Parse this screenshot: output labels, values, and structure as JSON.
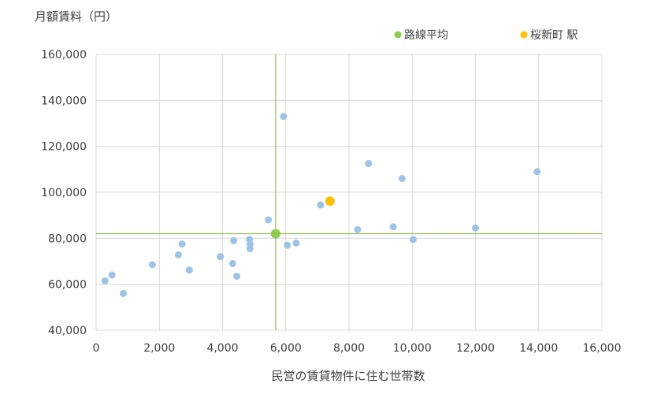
{
  "chart_data": {
    "type": "scatter",
    "title": "",
    "ylabel": "月額賃料（円）",
    "xlabel": "民営の賃貸物件に住む世帯数",
    "xlim": [
      0,
      16000
    ],
    "ylim": [
      40000,
      160000
    ],
    "x_ticks": [
      0,
      2000,
      4000,
      6000,
      8000,
      10000,
      12000,
      14000,
      16000
    ],
    "y_ticks": [
      40000,
      60000,
      80000,
      100000,
      120000,
      140000,
      160000
    ],
    "x_tick_labels": [
      "0",
      "2,000",
      "4,000",
      "6,000",
      "8,000",
      "10,000",
      "12,000",
      "14,000",
      "16,000"
    ],
    "y_tick_labels": [
      "40,000",
      "60,000",
      "80,000",
      "100,000",
      "120,000",
      "140,000",
      "160,000"
    ],
    "grid": true,
    "legend_position": "top-right",
    "points": [
      {
        "x": 280,
        "y": 61500
      },
      {
        "x": 500,
        "y": 64000
      },
      {
        "x": 860,
        "y": 56000
      },
      {
        "x": 1780,
        "y": 68500
      },
      {
        "x": 2600,
        "y": 72800
      },
      {
        "x": 2720,
        "y": 77500
      },
      {
        "x": 2950,
        "y": 66200
      },
      {
        "x": 3930,
        "y": 72000
      },
      {
        "x": 4320,
        "y": 69000
      },
      {
        "x": 4350,
        "y": 79000
      },
      {
        "x": 4450,
        "y": 63500
      },
      {
        "x": 4850,
        "y": 79500
      },
      {
        "x": 4870,
        "y": 77500
      },
      {
        "x": 4870,
        "y": 75500
      },
      {
        "x": 5450,
        "y": 88000
      },
      {
        "x": 5930,
        "y": 133000
      },
      {
        "x": 6050,
        "y": 77000
      },
      {
        "x": 6330,
        "y": 78000
      },
      {
        "x": 7100,
        "y": 94500
      },
      {
        "x": 8270,
        "y": 83800
      },
      {
        "x": 8620,
        "y": 112500
      },
      {
        "x": 9400,
        "y": 85000
      },
      {
        "x": 9680,
        "y": 106000
      },
      {
        "x": 10030,
        "y": 79500
      },
      {
        "x": 12000,
        "y": 84500
      },
      {
        "x": 13950,
        "y": 109000
      }
    ],
    "average": {
      "name": "路線平均",
      "x": 5680,
      "y": 82000
    },
    "station": {
      "name": "桜新町 駅",
      "x": 7400,
      "y": 96200
    },
    "colors": {
      "points": "#9dc3e6",
      "average": "#8fcc4a",
      "average_line": "#8fbd4d",
      "station": "#ffc000",
      "grid": "#d9d9d9"
    }
  }
}
